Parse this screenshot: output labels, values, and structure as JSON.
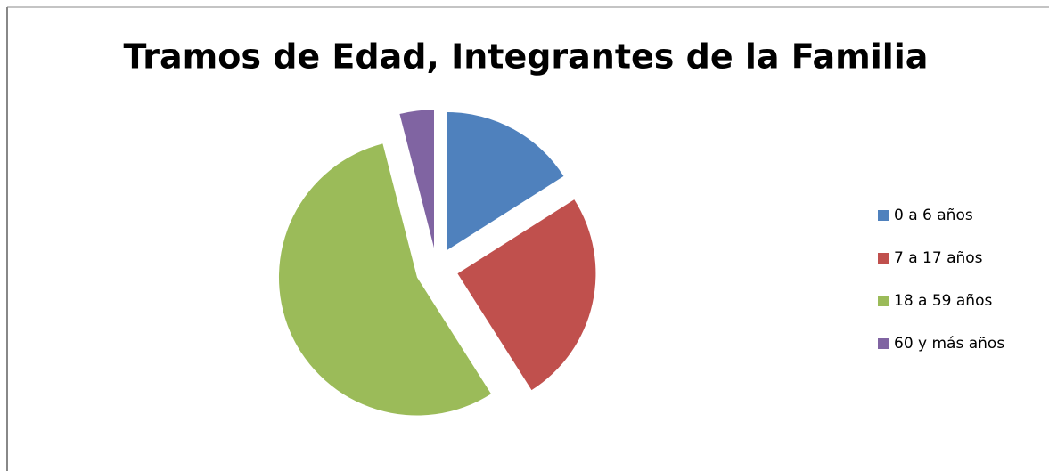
{
  "chart_data": {
    "type": "pie",
    "title": "Tramos de Edad, Integrantes de la Familia",
    "categories": [
      "0 a 6 años",
      "7 a 17 años",
      "18 a 59 años",
      "60 y más años"
    ],
    "values": [
      16,
      25,
      55,
      4
    ],
    "colors": [
      "#4f81bd",
      "#c0504d",
      "#9bbb59",
      "#8064a2"
    ],
    "legend": "right",
    "exploded": true
  }
}
